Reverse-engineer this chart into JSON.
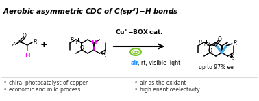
{
  "title_text": "Aerobic asymmetric CDC of ",
  "title_chem": "C(sp³)–H bonds",
  "bullet_left": [
    "chiral photocatalyst of copper",
    "economic and mild process"
  ],
  "bullet_right": [
    "air as the oxidant",
    "high enantioselectivity"
  ],
  "background": "#ffffff",
  "title_color": "#000000",
  "bullet_color": "#333333",
  "magenta": "#FF00FF",
  "air_blue": "#1E90FF",
  "arrow_color": "#000000",
  "bond_color": "#000000",
  "cyan_bond": "#4AADE8",
  "green_light": "#7DC832",
  "green_light2": "#AADE50"
}
